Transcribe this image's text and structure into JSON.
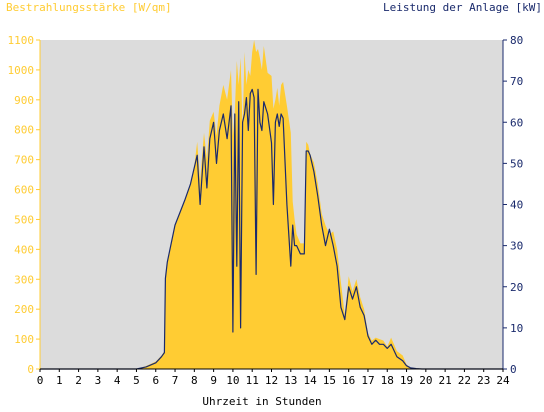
{
  "chart_data": {
    "type": "area",
    "title": "",
    "xlabel": "Uhrzeit in Stunden",
    "x_ticks": [
      "0",
      "1",
      "2",
      "3",
      "4",
      "5",
      "6",
      "7",
      "8",
      "9",
      "10",
      "11",
      "12",
      "13",
      "14",
      "15",
      "16",
      "17",
      "18",
      "19",
      "20",
      "21",
      "22",
      "23",
      "24"
    ],
    "xlim": [
      0,
      24
    ],
    "y_left": {
      "label": "Bestrahlungsstärke [W/qm]",
      "ticks": [
        "0",
        "100",
        "200",
        "300",
        "400",
        "500",
        "600",
        "700",
        "800",
        "900",
        "1000",
        "1100"
      ],
      "lim": [
        0,
        1100
      ]
    },
    "y_right": {
      "label": "Leistung der Anlage [kW]",
      "ticks": [
        "0",
        "10",
        "20",
        "30",
        "40",
        "50",
        "60",
        "70",
        "80"
      ],
      "lim": [
        0,
        80
      ]
    },
    "colors": {
      "irradiance": "#FFCC33",
      "power": "#1A2A6C",
      "plot_background": "#DCDCDC",
      "left_axis_text": "#FFCC33",
      "right_axis_text": "#1A2A6C"
    },
    "grid": false,
    "series": [
      {
        "name": "Bestrahlungsstärke",
        "axis": "left",
        "type": "area",
        "x": [
          0,
          5.0,
          5.5,
          6.0,
          6.3,
          6.45,
          6.5,
          6.6,
          7.0,
          7.5,
          7.8,
          8.0,
          8.15,
          8.3,
          8.5,
          8.65,
          8.8,
          9.0,
          9.15,
          9.3,
          9.5,
          9.7,
          9.9,
          10.0,
          10.1,
          10.2,
          10.3,
          10.4,
          10.5,
          10.6,
          10.7,
          10.8,
          10.9,
          11.0,
          11.1,
          11.2,
          11.3,
          11.4,
          11.5,
          11.6,
          11.8,
          12.0,
          12.1,
          12.2,
          12.3,
          12.4,
          12.5,
          12.6,
          12.8,
          13.0,
          13.1,
          13.2,
          13.3,
          13.5,
          13.7,
          13.8,
          13.9,
          14.0,
          14.2,
          14.4,
          14.6,
          14.8,
          15.0,
          15.2,
          15.4,
          15.6,
          15.8,
          16.0,
          16.2,
          16.4,
          16.6,
          16.8,
          17.0,
          17.2,
          17.4,
          17.6,
          17.8,
          18.0,
          18.2,
          18.5,
          18.8,
          19.0,
          19.2,
          19.5,
          19.8,
          20.0,
          20.2,
          24
        ],
        "values": [
          0,
          0,
          10,
          25,
          45,
          60,
          310,
          360,
          480,
          560,
          620,
          680,
          760,
          630,
          790,
          700,
          830,
          860,
          780,
          880,
          950,
          900,
          1000,
          780,
          860,
          1030,
          950,
          1040,
          800,
          1060,
          950,
          1000,
          980,
          1060,
          1100,
          1060,
          1070,
          1040,
          1000,
          1080,
          990,
          980,
          870,
          900,
          940,
          880,
          950,
          960,
          880,
          790,
          560,
          500,
          450,
          420,
          420,
          760,
          750,
          720,
          690,
          620,
          520,
          480,
          450,
          460,
          400,
          290,
          180,
          310,
          260,
          300,
          240,
          200,
          120,
          95,
          105,
          100,
          95,
          75,
          105,
          60,
          45,
          15,
          5,
          3,
          0,
          0,
          0,
          0
        ]
      },
      {
        "name": "Leistung der Anlage",
        "axis": "right",
        "type": "line",
        "x": [
          0,
          5.0,
          5.5,
          6.0,
          6.3,
          6.45,
          6.5,
          6.6,
          7.0,
          7.5,
          7.8,
          8.0,
          8.15,
          8.3,
          8.5,
          8.65,
          8.8,
          9.0,
          9.15,
          9.3,
          9.5,
          9.7,
          9.9,
          10.0,
          10.1,
          10.2,
          10.3,
          10.4,
          10.5,
          10.6,
          10.7,
          10.8,
          10.9,
          11.0,
          11.1,
          11.2,
          11.3,
          11.4,
          11.5,
          11.6,
          11.8,
          12.0,
          12.1,
          12.2,
          12.3,
          12.4,
          12.5,
          12.6,
          12.8,
          13.0,
          13.1,
          13.2,
          13.3,
          13.5,
          13.7,
          13.8,
          13.9,
          14.0,
          14.2,
          14.4,
          14.6,
          14.8,
          15.0,
          15.2,
          15.4,
          15.6,
          15.8,
          16.0,
          16.2,
          16.4,
          16.6,
          16.8,
          17.0,
          17.2,
          17.4,
          17.6,
          17.8,
          18.0,
          18.2,
          18.5,
          18.8,
          19.0,
          19.2,
          19.5,
          19.8,
          20.0,
          20.2,
          24
        ],
        "values": [
          0,
          0,
          0.5,
          1.5,
          3,
          4,
          22,
          26,
          35,
          41,
          45,
          49,
          52,
          40,
          54,
          44,
          56,
          60,
          50,
          58,
          62,
          56,
          64,
          9,
          62,
          25,
          65,
          10,
          60,
          62,
          66,
          58,
          67,
          68,
          66,
          23,
          68,
          60,
          58,
          65,
          62,
          55,
          40,
          60,
          62,
          59,
          62,
          61,
          40,
          25,
          35,
          30,
          30,
          28,
          28,
          53,
          53,
          52,
          48,
          42,
          35,
          30,
          34,
          30,
          25,
          15,
          12,
          20,
          17,
          20,
          15,
          13,
          8,
          6,
          7,
          6,
          6,
          5,
          6,
          3,
          2,
          0.8,
          0.3,
          0.1,
          0,
          0,
          0,
          0
        ]
      }
    ]
  }
}
